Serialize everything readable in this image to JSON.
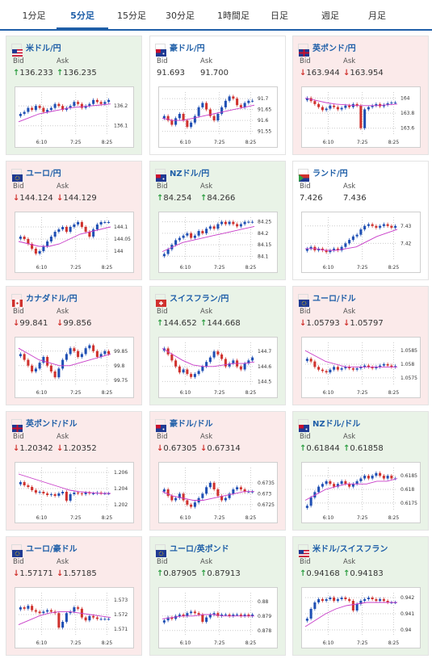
{
  "tabs": [
    {
      "label": "1分足",
      "active": false
    },
    {
      "label": "5分足",
      "active": true
    },
    {
      "label": "15分足",
      "active": false
    },
    {
      "label": "30分足",
      "active": false
    },
    {
      "label": "1時間足",
      "active": false
    },
    {
      "label": "日足",
      "active": false
    },
    {
      "label": "週足",
      "active": false
    },
    {
      "label": "月足",
      "active": false
    }
  ],
  "colors": {
    "up_candle": "#1f4fb4",
    "down_candle": "#d0312d",
    "ma_line": "#c83cc8",
    "accent": "#1f5fa8"
  },
  "bid_label": "Bid",
  "ask_label": "Ask",
  "chart_data": [
    {
      "type": "candlestick",
      "pair": "米ドル/円",
      "flag": "us",
      "trend": "up",
      "bid": "136.233",
      "ask": "136.235",
      "x_ticks": [
        "6:10",
        "7:25",
        "8:25"
      ],
      "y_ticks": [
        "136.2",
        "136.1"
      ],
      "ylim": [
        136.05,
        136.27
      ],
      "closes": [
        136.16,
        136.17,
        136.19,
        136.18,
        136.2,
        136.19,
        136.17,
        136.18,
        136.19,
        136.21,
        136.2,
        136.18,
        136.19,
        136.2,
        136.22,
        136.21,
        136.19,
        136.2,
        136.21,
        136.23,
        136.22,
        136.21,
        136.22,
        136.23
      ],
      "ma": [
        136.12,
        136.14,
        136.16,
        136.17,
        136.18,
        136.19,
        136.195,
        136.2,
        136.205,
        136.21
      ]
    },
    {
      "type": "candlestick",
      "pair": "豪ドル/円",
      "flag": "au",
      "trend": "flat",
      "bid": "91.693",
      "ask": "91.700",
      "x_ticks": [
        "6:10",
        "7:25",
        "8:25"
      ],
      "y_ticks": [
        "91.7",
        "91.65",
        "91.6",
        "91.55"
      ],
      "ylim": [
        91.53,
        91.73
      ],
      "closes": [
        91.62,
        91.6,
        91.58,
        91.61,
        91.63,
        91.6,
        91.57,
        91.59,
        91.62,
        91.66,
        91.68,
        91.65,
        91.62,
        91.6,
        91.63,
        91.66,
        91.69,
        91.71,
        91.7,
        91.67,
        91.66,
        91.68,
        91.69,
        91.69
      ],
      "ma": [
        91.61,
        91.6,
        91.6,
        91.61,
        91.62,
        91.63,
        91.64,
        91.65,
        91.66,
        91.67
      ]
    },
    {
      "type": "candlestick",
      "pair": "英ポンド/円",
      "flag": "gb",
      "trend": "down",
      "bid": "163.944",
      "ask": "163.954",
      "x_ticks": [
        "6:10",
        "7:25",
        "8:25"
      ],
      "y_ticks": [
        "164",
        "163.8",
        "163.6"
      ],
      "ylim": [
        163.5,
        164.08
      ],
      "closes": [
        164.0,
        163.96,
        163.92,
        163.88,
        163.84,
        163.86,
        163.9,
        163.88,
        163.85,
        163.87,
        163.9,
        163.88,
        163.92,
        163.9,
        163.6,
        163.85,
        163.88,
        163.9,
        163.92,
        163.89,
        163.91,
        163.93,
        163.94,
        163.94
      ],
      "ma": [
        164.0,
        163.97,
        163.94,
        163.92,
        163.91,
        163.9,
        163.9,
        163.9,
        163.91,
        163.92
      ]
    },
    {
      "type": "candlestick",
      "pair": "ユーロ/円",
      "flag": "eu",
      "trend": "down",
      "bid": "144.124",
      "ask": "144.129",
      "x_ticks": [
        "6:10",
        "7:25",
        "8:25"
      ],
      "y_ticks": [
        "144.1",
        "144.05",
        "144"
      ],
      "ylim": [
        143.96,
        144.14
      ],
      "closes": [
        144.06,
        144.05,
        144.03,
        144.01,
        143.99,
        144.0,
        144.02,
        144.04,
        144.06,
        144.08,
        144.09,
        144.1,
        144.08,
        144.1,
        144.11,
        144.12,
        144.1,
        144.08,
        144.06,
        144.09,
        144.11,
        144.12,
        144.12,
        144.12
      ],
      "ma": [
        144.04,
        144.03,
        144.02,
        144.02,
        144.03,
        144.05,
        144.07,
        144.08,
        144.09,
        144.1
      ]
    },
    {
      "type": "candlestick",
      "pair": "NZドル/円",
      "flag": "nz",
      "trend": "up",
      "bid": "84.254",
      "ask": "84.266",
      "x_ticks": [
        "6:10",
        "7:25",
        "8:25"
      ],
      "y_ticks": [
        "84.25",
        "84.2",
        "84.15",
        "84.1"
      ],
      "ylim": [
        84.08,
        84.27
      ],
      "closes": [
        84.11,
        84.13,
        84.15,
        84.17,
        84.18,
        84.19,
        84.2,
        84.18,
        84.19,
        84.21,
        84.2,
        84.22,
        84.23,
        84.22,
        84.24,
        84.25,
        84.24,
        84.25,
        84.24,
        84.23,
        84.24,
        84.25,
        84.25,
        84.25
      ],
      "ma": [
        84.12,
        84.14,
        84.16,
        84.17,
        84.18,
        84.19,
        84.2,
        84.21,
        84.22,
        84.23
      ]
    },
    {
      "type": "candlestick",
      "pair": "ランド/円",
      "flag": "za",
      "trend": "flat",
      "bid": "7.426",
      "ask": "7.436",
      "x_ticks": [
        "6:10",
        "7:25",
        "8:25"
      ],
      "y_ticks": [
        "7.43",
        "7.42"
      ],
      "ylim": [
        7.41,
        7.435
      ],
      "closes": [
        7.417,
        7.418,
        7.416,
        7.417,
        7.416,
        7.415,
        7.416,
        7.417,
        7.416,
        7.418,
        7.42,
        7.422,
        7.424,
        7.425,
        7.428,
        7.43,
        7.431,
        7.43,
        7.429,
        7.43,
        7.431,
        7.43,
        7.429,
        7.43
      ],
      "ma": [
        7.417,
        7.417,
        7.416,
        7.416,
        7.417,
        7.418,
        7.421,
        7.424,
        7.426,
        7.428
      ]
    },
    {
      "type": "candlestick",
      "pair": "カナダドル/円",
      "flag": "ca",
      "trend": "down",
      "bid": "99.841",
      "ask": "99.856",
      "x_ticks": [
        "6:10",
        "7:25",
        "8:25"
      ],
      "y_ticks": [
        "99.85",
        "99.8",
        "99.75"
      ],
      "ylim": [
        99.73,
        99.88
      ],
      "closes": [
        99.84,
        99.82,
        99.8,
        99.78,
        99.79,
        99.81,
        99.83,
        99.8,
        99.78,
        99.76,
        99.79,
        99.82,
        99.84,
        99.86,
        99.85,
        99.83,
        99.84,
        99.86,
        99.87,
        99.85,
        99.83,
        99.84,
        99.85,
        99.84
      ],
      "ma": [
        99.86,
        99.84,
        99.82,
        99.81,
        99.8,
        99.8,
        99.81,
        99.82,
        99.83,
        99.84
      ]
    },
    {
      "type": "candlestick",
      "pair": "スイスフラン/円",
      "flag": "ch",
      "trend": "up",
      "bid": "144.652",
      "ask": "144.668",
      "x_ticks": [
        "6:10",
        "7:25",
        "8:25"
      ],
      "y_ticks": [
        "144.7",
        "144.6",
        "144.5"
      ],
      "ylim": [
        144.47,
        144.76
      ],
      "closes": [
        144.72,
        144.68,
        144.64,
        144.6,
        144.56,
        144.58,
        144.55,
        144.53,
        144.55,
        144.57,
        144.6,
        144.63,
        144.66,
        144.7,
        144.68,
        144.65,
        144.6,
        144.62,
        144.64,
        144.6,
        144.58,
        144.62,
        144.64,
        144.66
      ],
      "ma": [
        144.72,
        144.68,
        144.64,
        144.61,
        144.6,
        144.6,
        144.61,
        144.62,
        144.62,
        144.63
      ]
    },
    {
      "type": "candlestick",
      "pair": "ユーロ/ドル",
      "flag": "eu-us",
      "trend": "down",
      "bid": "1.05793",
      "ask": "1.05797",
      "x_ticks": [
        "6:10",
        "7:25",
        "8:25"
      ],
      "y_ticks": [
        "1.0585",
        "1.058",
        "1.0575"
      ],
      "ylim": [
        1.0572,
        1.0588
      ],
      "closes": [
        1.0582,
        1.0581,
        1.0579,
        1.0578,
        1.05775,
        1.0577,
        1.0578,
        1.0579,
        1.0578,
        1.05785,
        1.0579,
        1.05785,
        1.0578,
        1.05785,
        1.0579,
        1.05795,
        1.0579,
        1.05785,
        1.0579,
        1.05795,
        1.058,
        1.05795,
        1.0579,
        1.05793
      ],
      "ma": [
        1.0585,
        1.0583,
        1.0581,
        1.058,
        1.0579,
        1.0579,
        1.0579,
        1.0579,
        1.0579,
        1.0579
      ]
    },
    {
      "type": "candlestick",
      "pair": "英ポンド/ドル",
      "flag": "gb-us",
      "trend": "down",
      "bid": "1.20342",
      "ask": "1.20352",
      "x_ticks": [
        "6:10",
        "7:25",
        "8:25"
      ],
      "y_ticks": [
        "1.206",
        "1.204",
        "1.202"
      ],
      "ylim": [
        1.2012,
        1.2066
      ],
      "closes": [
        1.2048,
        1.2044,
        1.2042,
        1.2038,
        1.2035,
        1.2036,
        1.2034,
        1.2032,
        1.2033,
        1.2031,
        1.2034,
        1.2036,
        1.2025,
        1.2033,
        1.2035,
        1.2034,
        1.2033,
        1.2035,
        1.2034,
        1.2034,
        1.2035,
        1.2034,
        1.2034,
        1.2034
      ],
      "ma": [
        1.2058,
        1.2054,
        1.205,
        1.2046,
        1.2042,
        1.2038,
        1.2036,
        1.2035,
        1.2034,
        1.2034
      ]
    },
    {
      "type": "candlestick",
      "pair": "豪ドル/ドル",
      "flag": "au-us",
      "trend": "down",
      "bid": "0.67305",
      "ask": "0.67314",
      "x_ticks": [
        "6:10",
        "7:25",
        "8:25"
      ],
      "y_ticks": [
        "0.6735",
        "0.673",
        "0.6725"
      ],
      "ylim": [
        0.6722,
        0.6742
      ],
      "closes": [
        0.6732,
        0.6729,
        0.6727,
        0.6728,
        0.673,
        0.6727,
        0.6725,
        0.6724,
        0.6726,
        0.6728,
        0.673,
        0.6733,
        0.6735,
        0.6732,
        0.6729,
        0.6727,
        0.6728,
        0.673,
        0.6732,
        0.6733,
        0.6732,
        0.6731,
        0.6731,
        0.6731
      ],
      "ma": [
        0.6731,
        0.6729,
        0.6728,
        0.6727,
        0.6727,
        0.6728,
        0.6729,
        0.673,
        0.6731,
        0.6731
      ]
    },
    {
      "type": "candlestick",
      "pair": "NZドル/ドル",
      "flag": "nz-us",
      "trend": "up",
      "bid": "0.61844",
      "ask": "0.61858",
      "x_ticks": [
        "6:10",
        "7:25",
        "8:25"
      ],
      "y_ticks": [
        "0.6185",
        "0.618",
        "0.6175"
      ],
      "ylim": [
        0.6172,
        0.6188
      ],
      "closes": [
        0.6174,
        0.6177,
        0.6179,
        0.6181,
        0.6182,
        0.6183,
        0.6182,
        0.6181,
        0.6182,
        0.6183,
        0.6182,
        0.6181,
        0.6182,
        0.6183,
        0.6184,
        0.6185,
        0.6184,
        0.6185,
        0.6186,
        0.6185,
        0.6184,
        0.6185,
        0.6184,
        0.6184
      ],
      "ma": [
        0.6176,
        0.6178,
        0.618,
        0.6181,
        0.6182,
        0.6182,
        0.6182,
        0.6183,
        0.6183,
        0.6184
      ]
    },
    {
      "type": "candlestick",
      "pair": "ユーロ/豪ドル",
      "flag": "eu-au",
      "trend": "down",
      "bid": "1.57171",
      "ask": "1.57185",
      "x_ticks": [
        "6:10",
        "7:25",
        "8:25"
      ],
      "y_ticks": [
        "1.573",
        "1.572",
        "1.571"
      ],
      "ylim": [
        1.5705,
        1.5735
      ],
      "closes": [
        1.5725,
        1.5724,
        1.5726,
        1.5723,
        1.5722,
        1.5721,
        1.5722,
        1.5723,
        1.5722,
        1.5721,
        1.5711,
        1.5715,
        1.5721,
        1.5722,
        1.5725,
        1.5724,
        1.5718,
        1.5716,
        1.5719,
        1.5718,
        1.5717,
        1.5717,
        1.5717,
        1.5717
      ],
      "ma": [
        1.5713,
        1.5716,
        1.5719,
        1.5721,
        1.5722,
        1.5722,
        1.5721,
        1.572,
        1.5719,
        1.5718
      ]
    },
    {
      "type": "candlestick",
      "pair": "ユーロ/英ポンド",
      "flag": "eu-gb",
      "trend": "up",
      "bid": "0.87905",
      "ask": "0.87913",
      "x_ticks": [
        "6:10",
        "7:25",
        "8:25"
      ],
      "y_ticks": [
        "0.88",
        "0.879",
        "0.878"
      ],
      "ylim": [
        0.8776,
        0.8806
      ],
      "closes": [
        0.8787,
        0.8789,
        0.8788,
        0.879,
        0.8791,
        0.879,
        0.8792,
        0.8793,
        0.8792,
        0.8791,
        0.8786,
        0.8789,
        0.8791,
        0.8792,
        0.879,
        0.8791,
        0.8791,
        0.879,
        0.8791,
        0.8791,
        0.879,
        0.8791,
        0.879,
        0.8791
      ],
      "ma": [
        0.8788,
        0.8789,
        0.879,
        0.879,
        0.8791,
        0.8791,
        0.879,
        0.879,
        0.879,
        0.879
      ]
    },
    {
      "type": "candlestick",
      "pair": "米ドル/スイスフラン",
      "flag": "us-ch",
      "trend": "up",
      "bid": "0.94168",
      "ask": "0.94183",
      "x_ticks": [
        "6:10",
        "7:25",
        "8:25"
      ],
      "y_ticks": [
        "0.942",
        "0.941",
        "0.94"
      ],
      "ylim": [
        0.9396,
        0.9423
      ],
      "closes": [
        0.9407,
        0.9413,
        0.9417,
        0.9419,
        0.9418,
        0.9419,
        0.942,
        0.9418,
        0.9419,
        0.942,
        0.9419,
        0.9418,
        0.9412,
        0.9416,
        0.9418,
        0.9419,
        0.942,
        0.9419,
        0.9418,
        0.9419,
        0.9418,
        0.9417,
        0.9417,
        0.9417
      ],
      "ma": [
        0.9402,
        0.9406,
        0.941,
        0.9413,
        0.9415,
        0.9416,
        0.9417,
        0.9417,
        0.9417,
        0.9417
      ]
    }
  ]
}
